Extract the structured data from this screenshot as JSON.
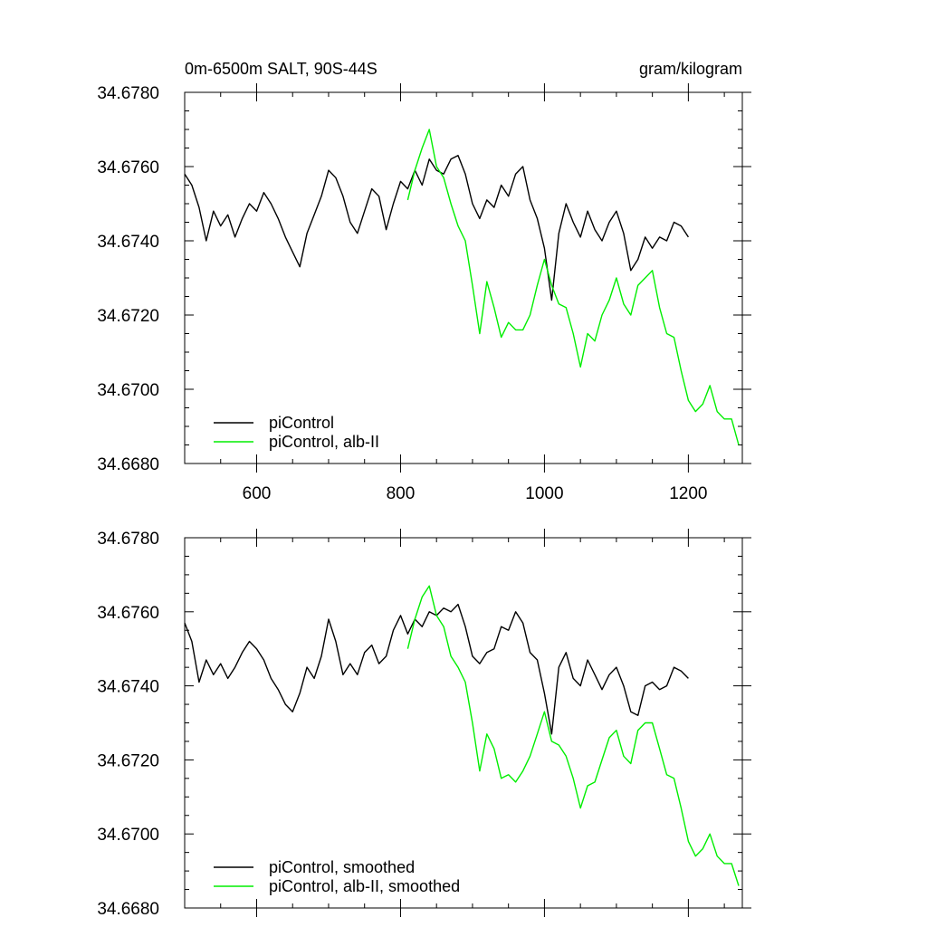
{
  "header": {
    "left_title": "0m-6500m SALT, 90S-44S",
    "right_title": "gram/kilogram"
  },
  "chart_data": [
    {
      "type": "line",
      "panel": "top",
      "xlim": [
        500,
        1275
      ],
      "ylim": [
        34.668,
        34.678
      ],
      "xticks": [
        600,
        800,
        1000,
        1200
      ],
      "xtick_labels": [
        "600",
        "800",
        "1000",
        "1200"
      ],
      "yticks": [
        34.668,
        34.67,
        34.672,
        34.674,
        34.676,
        34.678
      ],
      "ytick_labels": [
        "34.6680",
        "34.6700",
        "34.6720",
        "34.6740",
        "34.6760",
        "34.6780"
      ],
      "legend_position": "bottom-left",
      "series": [
        {
          "name": "piControl",
          "color": "#000000",
          "x": [
            500,
            510,
            520,
            530,
            540,
            550,
            560,
            570,
            580,
            590,
            600,
            610,
            620,
            630,
            640,
            650,
            660,
            670,
            680,
            690,
            700,
            710,
            720,
            730,
            740,
            750,
            760,
            770,
            780,
            790,
            800,
            810,
            820,
            830,
            840,
            850,
            860,
            870,
            880,
            890,
            900,
            910,
            920,
            930,
            940,
            950,
            960,
            970,
            980,
            990,
            1000,
            1010,
            1020,
            1030,
            1040,
            1050,
            1060,
            1070,
            1080,
            1090,
            1100,
            1110,
            1120,
            1130,
            1140,
            1150,
            1160,
            1170,
            1180,
            1190,
            1200
          ],
          "values": [
            34.6758,
            34.6755,
            34.6749,
            34.674,
            34.6748,
            34.6744,
            34.6747,
            34.6741,
            34.6746,
            34.675,
            34.6748,
            34.6753,
            34.675,
            34.6746,
            34.6741,
            34.6737,
            34.6733,
            34.6742,
            34.6747,
            34.6752,
            34.6759,
            34.6757,
            34.6752,
            34.6745,
            34.6742,
            34.6748,
            34.6754,
            34.6752,
            34.6743,
            34.675,
            34.6756,
            34.6754,
            34.6759,
            34.6755,
            34.6762,
            34.6759,
            34.6758,
            34.6762,
            34.6763,
            34.6758,
            34.675,
            34.6746,
            34.6751,
            34.6749,
            34.6755,
            34.6752,
            34.6758,
            34.676,
            34.6751,
            34.6746,
            34.6738,
            34.6724,
            34.6742,
            34.675,
            34.6745,
            34.6741,
            34.6748,
            34.6743,
            34.674,
            34.6745,
            34.6748,
            34.6742,
            34.6732,
            34.6735,
            34.6741,
            34.6738,
            34.6741,
            34.674,
            34.6745,
            34.6744,
            34.6741
          ]
        },
        {
          "name": "piControl, alb-II",
          "color": "#00ee00",
          "x": [
            810,
            820,
            830,
            840,
            850,
            860,
            870,
            880,
            890,
            900,
            910,
            920,
            930,
            940,
            950,
            960,
            970,
            980,
            990,
            1000,
            1010,
            1020,
            1030,
            1040,
            1050,
            1060,
            1070,
            1080,
            1090,
            1100,
            1110,
            1120,
            1130,
            1140,
            1150,
            1160,
            1170,
            1180,
            1190,
            1200,
            1210,
            1220,
            1230,
            1240,
            1250,
            1260,
            1270
          ],
          "values": [
            34.6751,
            34.6759,
            34.6765,
            34.677,
            34.676,
            34.6757,
            34.675,
            34.6744,
            34.674,
            34.6728,
            34.6715,
            34.6729,
            34.6722,
            34.6714,
            34.6718,
            34.6716,
            34.6716,
            34.672,
            34.6728,
            34.6735,
            34.6728,
            34.6723,
            34.6722,
            34.6715,
            34.6706,
            34.6715,
            34.6713,
            34.672,
            34.6724,
            34.673,
            34.6723,
            34.672,
            34.6728,
            34.673,
            34.6732,
            34.6722,
            34.6715,
            34.6714,
            34.6705,
            34.6697,
            34.6694,
            34.6696,
            34.6701,
            34.6694,
            34.6692,
            34.6692,
            34.6685
          ]
        }
      ]
    },
    {
      "type": "line",
      "panel": "bottom",
      "xlim": [
        500,
        1275
      ],
      "ylim": [
        34.668,
        34.678
      ],
      "xticks": [
        600,
        800,
        1000,
        1200
      ],
      "yticks": [
        34.668,
        34.67,
        34.672,
        34.674,
        34.676,
        34.678
      ],
      "ytick_labels": [
        "34.6680",
        "34.6700",
        "34.6720",
        "34.6740",
        "34.6760",
        "34.6780"
      ],
      "legend_position": "bottom-left",
      "series": [
        {
          "name": "piControl, smoothed",
          "color": "#000000",
          "x": [
            500,
            510,
            520,
            530,
            540,
            550,
            560,
            570,
            580,
            590,
            600,
            610,
            620,
            630,
            640,
            650,
            660,
            670,
            680,
            690,
            700,
            710,
            720,
            730,
            740,
            750,
            760,
            770,
            780,
            790,
            800,
            810,
            820,
            830,
            840,
            850,
            860,
            870,
            880,
            890,
            900,
            910,
            920,
            930,
            940,
            950,
            960,
            970,
            980,
            990,
            1000,
            1010,
            1020,
            1030,
            1040,
            1050,
            1060,
            1070,
            1080,
            1090,
            1100,
            1110,
            1120,
            1130,
            1140,
            1150,
            1160,
            1170,
            1180,
            1190,
            1200
          ],
          "values": [
            34.6757,
            34.6752,
            34.6741,
            34.6747,
            34.6743,
            34.6746,
            34.6742,
            34.6745,
            34.6749,
            34.6752,
            34.675,
            34.6747,
            34.6742,
            34.6739,
            34.6735,
            34.6733,
            34.6738,
            34.6745,
            34.6742,
            34.6748,
            34.6758,
            34.6752,
            34.6743,
            34.6746,
            34.6743,
            34.6749,
            34.6751,
            34.6746,
            34.6748,
            34.6755,
            34.6759,
            34.6754,
            34.6758,
            34.6756,
            34.676,
            34.6759,
            34.6761,
            34.676,
            34.6762,
            34.6756,
            34.6748,
            34.6746,
            34.6749,
            34.675,
            34.6756,
            34.6755,
            34.676,
            34.6757,
            34.6749,
            34.6747,
            34.6738,
            34.6727,
            34.6745,
            34.6749,
            34.6742,
            34.674,
            34.6747,
            34.6743,
            34.6739,
            34.6743,
            34.6745,
            34.674,
            34.6733,
            34.6732,
            34.674,
            34.6741,
            34.6739,
            34.674,
            34.6745,
            34.6744,
            34.6742
          ]
        },
        {
          "name": "piControl, alb-II, smoothed",
          "color": "#00ee00",
          "x": [
            810,
            820,
            830,
            840,
            850,
            860,
            870,
            880,
            890,
            900,
            910,
            920,
            930,
            940,
            950,
            960,
            970,
            980,
            990,
            1000,
            1010,
            1020,
            1030,
            1040,
            1050,
            1060,
            1070,
            1080,
            1090,
            1100,
            1110,
            1120,
            1130,
            1140,
            1150,
            1160,
            1170,
            1180,
            1190,
            1200,
            1210,
            1220,
            1230,
            1240,
            1250,
            1260,
            1270
          ],
          "values": [
            34.675,
            34.6758,
            34.6764,
            34.6767,
            34.6759,
            34.6756,
            34.6748,
            34.6745,
            34.6741,
            34.673,
            34.6717,
            34.6727,
            34.6723,
            34.6715,
            34.6716,
            34.6714,
            34.6717,
            34.6721,
            34.6727,
            34.6733,
            34.6725,
            34.6724,
            34.6721,
            34.6715,
            34.6707,
            34.6713,
            34.6714,
            34.672,
            34.6726,
            34.6728,
            34.6721,
            34.6719,
            34.6728,
            34.673,
            34.673,
            34.6723,
            34.6716,
            34.6715,
            34.6707,
            34.6698,
            34.6694,
            34.6696,
            34.67,
            34.6694,
            34.6692,
            34.6692,
            34.6686
          ]
        }
      ]
    }
  ]
}
